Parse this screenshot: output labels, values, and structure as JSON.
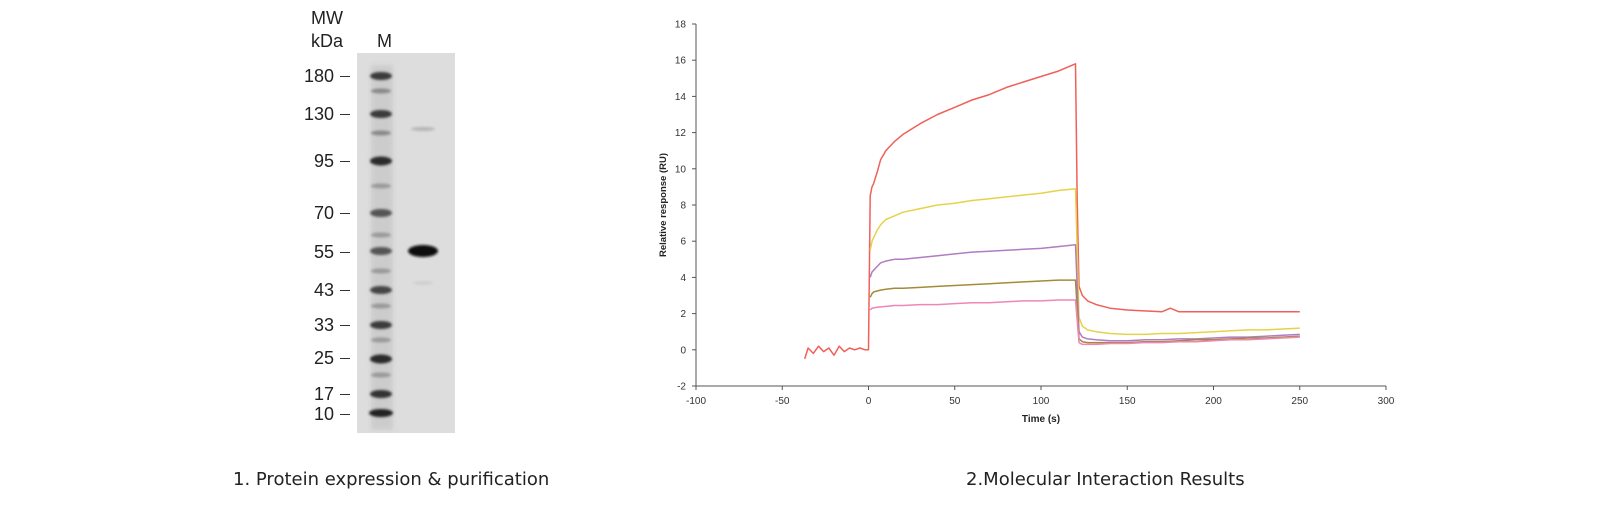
{
  "panel1": {
    "mw_label": "MW",
    "unit_label": "kDa",
    "lane_label": "M",
    "markers": [
      "180",
      "130",
      "95",
      "70",
      "55",
      "43",
      "33",
      "25",
      "17",
      "10"
    ],
    "caption": "1. Protein expression & purification"
  },
  "panel2": {
    "caption": "2.Molecular Interaction Results"
  },
  "chart_data": {
    "type": "line",
    "title": "",
    "xlabel": "Time (s)",
    "ylabel": "Relative response (RU)",
    "xlim": [
      -100,
      300
    ],
    "ylim": [
      -2,
      18
    ],
    "xticks": [
      -100,
      -50,
      0,
      50,
      100,
      150,
      200,
      250,
      300
    ],
    "yticks": [
      -2,
      0,
      2,
      4,
      6,
      8,
      10,
      12,
      14,
      16,
      18
    ],
    "grid": false,
    "series": [
      {
        "color": "#f0605a",
        "x": [
          -37,
          -35,
          -32,
          -29,
          -26,
          -23,
          -20,
          -17,
          -14,
          -11,
          -8,
          -5,
          -2,
          0,
          1,
          2,
          3,
          5,
          7,
          10,
          15,
          20,
          30,
          40,
          50,
          60,
          70,
          80,
          90,
          100,
          110,
          120,
          121,
          122,
          124,
          127,
          132,
          140,
          150,
          160,
          170,
          175,
          180,
          190,
          200,
          210,
          220,
          230,
          240,
          250
        ],
        "y": [
          -0.5,
          0.1,
          -0.2,
          0.2,
          -0.1,
          0.1,
          -0.3,
          0.2,
          -0.1,
          0.1,
          0.0,
          0.1,
          0.0,
          0.0,
          8.5,
          9.0,
          9.2,
          9.8,
          10.5,
          11.0,
          11.5,
          11.9,
          12.5,
          13.0,
          13.4,
          13.8,
          14.1,
          14.5,
          14.8,
          15.1,
          15.4,
          15.8,
          8.2,
          3.5,
          3.0,
          2.7,
          2.5,
          2.3,
          2.2,
          2.15,
          2.1,
          2.3,
          2.1,
          2.1,
          2.1,
          2.1,
          2.1,
          2.1,
          2.1,
          2.1
        ]
      },
      {
        "color": "#e6d24a",
        "x": [
          1,
          2,
          3,
          5,
          7,
          10,
          15,
          20,
          30,
          40,
          50,
          60,
          70,
          80,
          90,
          100,
          110,
          120,
          122,
          124,
          127,
          132,
          140,
          150,
          160,
          170,
          180,
          190,
          200,
          210,
          220,
          230,
          240,
          250
        ],
        "y": [
          5.5,
          6.0,
          6.2,
          6.6,
          6.9,
          7.2,
          7.4,
          7.6,
          7.8,
          8.0,
          8.1,
          8.25,
          8.35,
          8.45,
          8.55,
          8.65,
          8.8,
          8.9,
          1.8,
          1.3,
          1.1,
          1.0,
          0.9,
          0.85,
          0.85,
          0.9,
          0.9,
          0.95,
          1.0,
          1.05,
          1.1,
          1.1,
          1.15,
          1.2
        ]
      },
      {
        "color": "#b07cc2",
        "x": [
          1,
          2,
          3,
          5,
          7,
          10,
          15,
          20,
          30,
          40,
          50,
          60,
          70,
          80,
          90,
          100,
          110,
          120,
          122,
          124,
          127,
          132,
          140,
          150,
          160,
          170,
          180,
          190,
          200,
          210,
          220,
          230,
          240,
          250
        ],
        "y": [
          4.0,
          4.3,
          4.4,
          4.6,
          4.8,
          4.9,
          5.0,
          5.0,
          5.1,
          5.2,
          5.3,
          5.4,
          5.45,
          5.5,
          5.55,
          5.6,
          5.7,
          5.8,
          1.0,
          0.7,
          0.6,
          0.55,
          0.5,
          0.5,
          0.55,
          0.55,
          0.6,
          0.6,
          0.65,
          0.7,
          0.7,
          0.75,
          0.8,
          0.85
        ]
      },
      {
        "color": "#a58a3a",
        "x": [
          1,
          2,
          3,
          5,
          7,
          10,
          15,
          20,
          30,
          40,
          50,
          60,
          70,
          80,
          90,
          100,
          110,
          120,
          122,
          124,
          127,
          132,
          140,
          150,
          160,
          170,
          180,
          190,
          200,
          210,
          220,
          230,
          240,
          250
        ],
        "y": [
          2.9,
          3.1,
          3.2,
          3.25,
          3.3,
          3.35,
          3.4,
          3.4,
          3.45,
          3.5,
          3.55,
          3.6,
          3.65,
          3.7,
          3.75,
          3.8,
          3.85,
          3.85,
          0.6,
          0.45,
          0.4,
          0.4,
          0.4,
          0.4,
          0.45,
          0.45,
          0.5,
          0.55,
          0.55,
          0.6,
          0.65,
          0.65,
          0.7,
          0.75
        ]
      },
      {
        "color": "#ef86b8",
        "x": [
          1,
          2,
          5,
          10,
          15,
          20,
          30,
          40,
          50,
          60,
          70,
          80,
          90,
          100,
          110,
          120,
          122,
          124,
          127,
          132,
          140,
          150,
          160,
          170,
          180,
          190,
          200,
          210,
          220,
          230,
          240,
          250
        ],
        "y": [
          2.2,
          2.3,
          2.35,
          2.4,
          2.45,
          2.45,
          2.5,
          2.5,
          2.55,
          2.6,
          2.6,
          2.65,
          2.7,
          2.7,
          2.75,
          2.75,
          0.4,
          0.3,
          0.3,
          0.3,
          0.35,
          0.35,
          0.4,
          0.4,
          0.45,
          0.45,
          0.5,
          0.55,
          0.55,
          0.6,
          0.65,
          0.7
        ]
      }
    ]
  }
}
